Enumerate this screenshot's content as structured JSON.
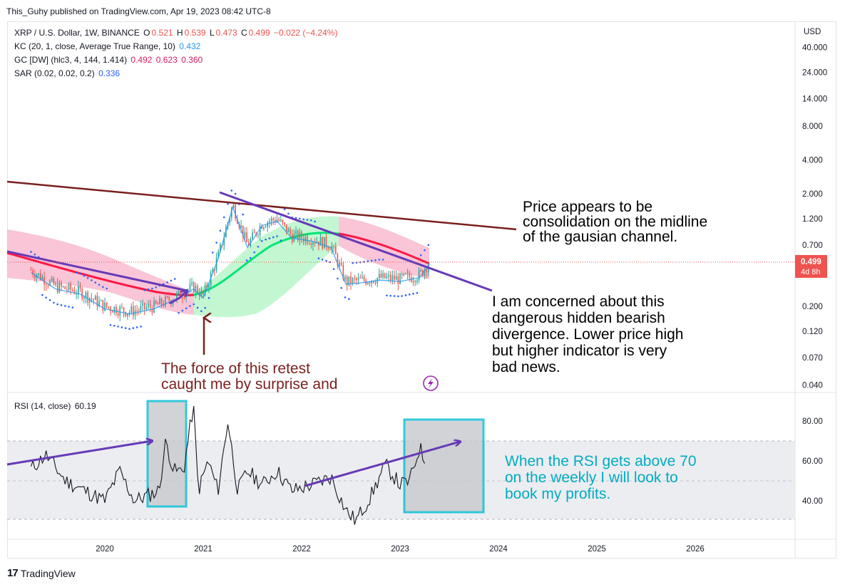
{
  "header": {
    "text": "This_Guhy published on TradingView.com, Apr 19, 2023 08:42 UTC-8"
  },
  "legend": {
    "symbol": "XRP / U.S. Dollar, 1W, BINANCE",
    "ohlc": {
      "o_label": "O",
      "o": "0.521",
      "h_label": "H",
      "h": "0.539",
      "l_label": "L",
      "l": "0.473",
      "c_label": "C",
      "c": "0.499",
      "chg": "−0.022 (−4.24%)"
    },
    "kc": {
      "label": "KC (20, 1, close, Average True Range, 10)",
      "value": "0.432"
    },
    "gc": {
      "label": "GC [DW] (hlc3, 4, 144, 1.414)",
      "v1": "0.492",
      "v2": "0.623",
      "v3": "0.360"
    },
    "sar": {
      "label": "SAR (0.02, 0.02, 0.2)",
      "value": "0.336"
    },
    "rsi": {
      "label": "RSI (14, close)",
      "value": "60.19"
    }
  },
  "colors": {
    "up": "#26a69a",
    "down": "#ef5350",
    "ohlc_text": "#ef5350",
    "kc": "#2196f3",
    "gc_bear_fill": "#f8bbd0",
    "gc_bull_fill": "#b9f6ca",
    "gc_mid_bear": "#ff1744",
    "gc_mid_bull": "#00e676",
    "sar": "#2962ff",
    "trend_brown": "#7b1f1f",
    "trend_purple": "#673ab7",
    "rsi_line": "#131722",
    "rsi_box": "#00bcd4",
    "annot_black": "#000000",
    "annot_red": "#7b1f1f",
    "annot_cyan": "#00acc1",
    "price_tag": "#ef5350"
  },
  "price_axis": {
    "currency": "USD",
    "ticks": [
      "40.000",
      "24.000",
      "14.000",
      "8.000",
      "4.000",
      "2.000",
      "1.200",
      "0.700",
      "0.499",
      "0.200",
      "0.120",
      "0.070",
      "0.040"
    ],
    "current_price": "0.499",
    "countdown": "4d 8h"
  },
  "rsi_axis": {
    "ticks": [
      "80.00",
      "60.00",
      "40.00"
    ]
  },
  "time_axis": {
    "ticks": [
      "2020",
      "2021",
      "2022",
      "2023",
      "2024",
      "2025",
      "2026"
    ]
  },
  "annotations": {
    "midline": [
      "Price appears to be",
      "consolidation on the midline",
      "of the gausian channel."
    ],
    "divergence": [
      "I am concerned about this",
      "dangerous hidden bearish",
      "divergence.  Lower price high",
      "but higher indicator is very",
      "bad news."
    ],
    "retest": [
      "The force of this retest",
      "caught me by surprise and"
    ],
    "rsi_note": [
      "When the RSI gets above 70",
      "on the weekly I will look to",
      "book my profits."
    ]
  },
  "footer": {
    "brand": "TradingView"
  },
  "chart_data": [
    {
      "type": "line",
      "title": "XRP / U.S. Dollar, 1W, BINANCE",
      "yscale": "log",
      "ylim": [
        0.04,
        40
      ],
      "x": [
        2019.25,
        2019.5,
        2019.75,
        2020.0,
        2020.25,
        2020.5,
        2020.75,
        2020.9,
        2021.0,
        2021.15,
        2021.3,
        2021.45,
        2021.6,
        2021.75,
        2021.9,
        2022.1,
        2022.3,
        2022.45,
        2022.6,
        2022.8,
        2023.0,
        2023.2,
        2023.3
      ],
      "close": [
        0.42,
        0.3,
        0.27,
        0.2,
        0.18,
        0.2,
        0.25,
        0.3,
        0.25,
        0.55,
        1.6,
        0.7,
        1.1,
        1.2,
        0.85,
        0.8,
        0.7,
        0.33,
        0.34,
        0.36,
        0.35,
        0.38,
        0.499
      ],
      "gc_mid": [
        0.55,
        0.45,
        0.36,
        0.3,
        0.26,
        0.24,
        0.23,
        0.24,
        0.28,
        0.38,
        0.55,
        0.7,
        0.8,
        0.85,
        0.88,
        0.85,
        0.8,
        0.72,
        0.65,
        0.58,
        0.53,
        0.5,
        0.492
      ],
      "grid": false
    },
    {
      "type": "line",
      "title": "RSI (14, close)",
      "ylim": [
        20,
        100
      ],
      "x": [
        2019.25,
        2019.4,
        2019.6,
        2019.8,
        2020.0,
        2020.15,
        2020.3,
        2020.45,
        2020.55,
        2020.62,
        2020.7,
        2020.8,
        2020.9,
        2020.95,
        2021.05,
        2021.15,
        2021.25,
        2021.35,
        2021.45,
        2021.6,
        2021.75,
        2021.9,
        2022.1,
        2022.3,
        2022.45,
        2022.55,
        2022.7,
        2022.85,
        2023.0,
        2023.1,
        2023.2,
        2023.25
      ],
      "values": [
        56,
        63,
        50,
        45,
        40,
        55,
        40,
        43,
        45,
        70,
        55,
        55,
        88,
        45,
        60,
        45,
        80,
        45,
        55,
        48,
        55,
        45,
        48,
        52,
        35,
        30,
        42,
        58,
        48,
        50,
        67,
        60.19
      ],
      "grid": false
    }
  ]
}
